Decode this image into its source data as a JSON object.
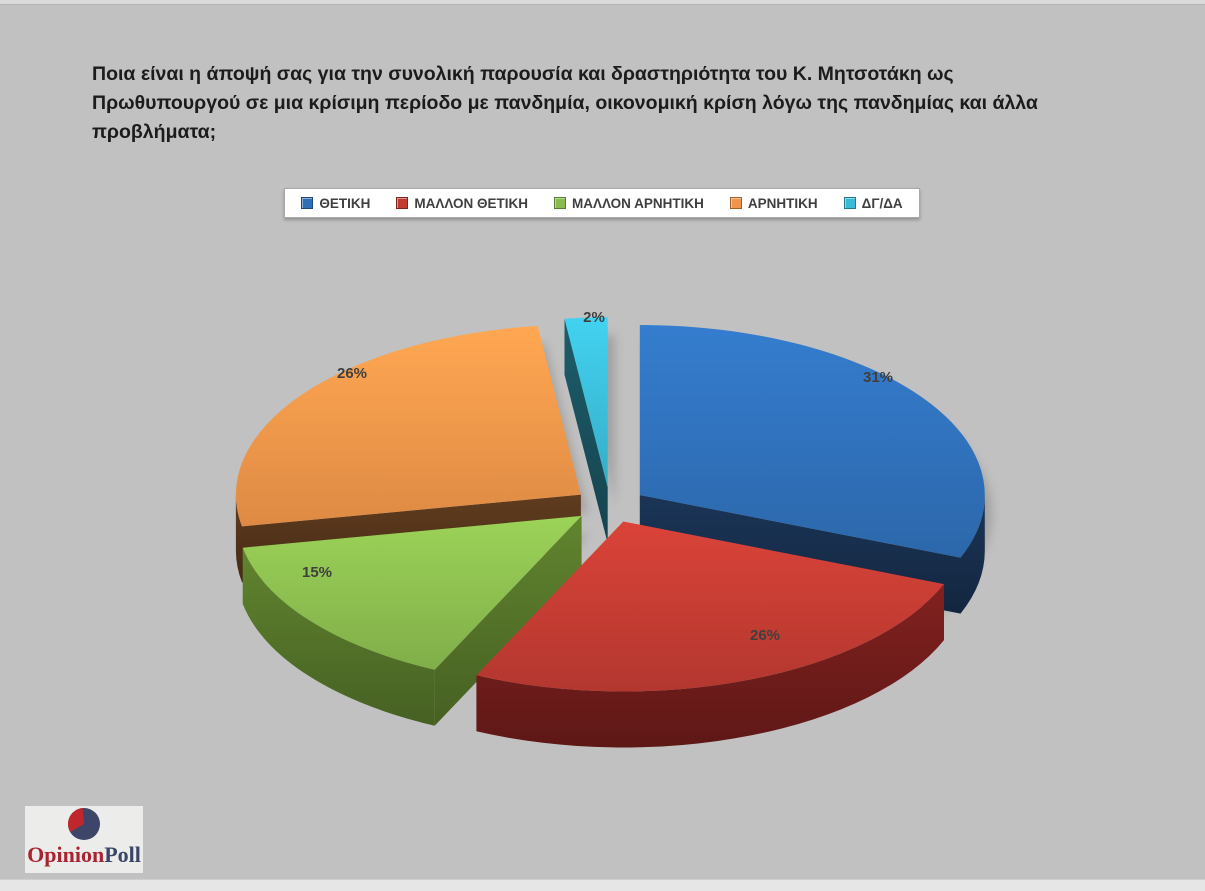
{
  "page": {
    "background": "#c1c1c1"
  },
  "title": {
    "full": "Ποια είναι η άποψή σας για την συνολική παρουσία και δραστηριότητα του Κ. Μητσοτάκη ως Πρωθυπουργού σε μια κρίσιμη περίοδο με πανδημία, οικονομική κρίση λόγω της πανδημίας και άλλα προβλήματα;",
    "lines": [
      "Ποια είναι η άποψή σας για την συνολική παρουσία και δραστηριότητα του Κ. Μητσοτάκη ως",
      "Πρωθυπουργού σε μια κρίσιμη περίοδο με πανδημία, οικονομική κρίση λόγω της πανδημίας και άλλα",
      "προβλήματα;"
    ]
  },
  "chart_data": {
    "type": "pie",
    "style": "3d-exploded",
    "title": "Ποια είναι η άποψή σας για την συνολική παρουσία και δραστηριότητα του Κ. Μητσοτάκη ως Πρωθυπουργού σε μια κρίσιμη περίοδο με πανδημία, οικονομική κρίση λόγω της πανδημίας και άλλα προβλήματα;",
    "categories": [
      "ΘΕΤΙΚΗ",
      "ΜΑΛΛΟΝ ΘΕΤΙΚΗ",
      "ΜΑΛΛΟΝ ΑΡΝΗΤΙΚΗ",
      "ΑΡΝΗΤΙΚΗ",
      "ΔΓ/ΔΑ"
    ],
    "values": [
      31,
      26,
      15,
      26,
      2
    ],
    "unit": "%",
    "data_labels": [
      "31%",
      "26%",
      "15%",
      "26%",
      "2%"
    ],
    "colors": [
      "#2f6fb7",
      "#c13b32",
      "#8abb4e",
      "#ef9449",
      "#3abad5"
    ],
    "side_colors": [
      "#1b3557",
      "#82211f",
      "#61852f",
      "#603c1e",
      "#1d5d6b"
    ],
    "label_color": "#3f3f3f",
    "legend_position": "top",
    "start_angle_deg": 0,
    "direction": "clockwise"
  },
  "branding": {
    "opinion": "Opinion",
    "poll": "Poll",
    "logo_pie_navy": "#3d4668",
    "logo_pie_red": "#c0272d"
  }
}
